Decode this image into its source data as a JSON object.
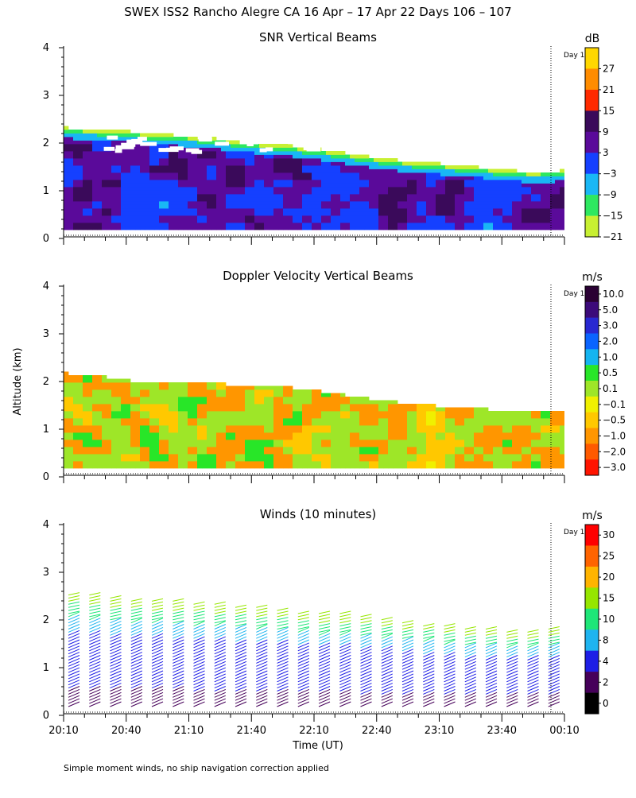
{
  "page": {
    "title": "SWEX ISS2 Rancho Alegre CA  16 Apr – 17 Apr 22 Days 106 – 107",
    "y_axis_label": "Altitude (km)",
    "x_axis_label": "Time (UT)",
    "footnote": "Simple moment winds, no ship navigation correction applied",
    "day_marker_label": "Day 1"
  },
  "time_ticks": [
    "20:10",
    "20:40",
    "21:10",
    "21:40",
    "22:10",
    "22:40",
    "23:10",
    "23:40",
    "00:10"
  ],
  "altitude_ticks": [
    "0",
    "1",
    "2",
    "3",
    "4"
  ],
  "chart_data": [
    {
      "type": "heatmap",
      "title": "SNR Vertical Beams",
      "colorbar_unit": "dB",
      "colorbar_labels": [
        "27",
        "21",
        "15",
        "9",
        "3",
        "−3",
        "−9",
        "−15",
        "−21"
      ],
      "colorbar_colors": [
        "#ffd700",
        "#ff8c00",
        "#ff2a00",
        "#3a0a5a",
        "#5a0a9a",
        "#1540ff",
        "#19b7f5",
        "#2ee860",
        "#c8f032"
      ],
      "ylim": [
        0,
        4
      ],
      "xlim": [
        "20:10",
        "00:10"
      ],
      "grid": false,
      "echo_top_km": [
        2.25,
        2.22,
        2.18,
        2.12,
        2.08,
        2.02,
        1.95,
        1.9,
        1.82,
        1.72,
        1.62,
        1.55,
        1.5,
        1.45,
        1.38,
        1.33,
        1.35
      ]
    },
    {
      "type": "heatmap",
      "title": "Doppler Velocity Vertical Beams",
      "colorbar_unit": "m/s",
      "colorbar_labels": [
        "10.0",
        "5.0",
        "3.0",
        "2.0",
        "1.0",
        "0.5",
        "0.1",
        "−0.1",
        "−0.5",
        "−1.0",
        "−2.0",
        "−3.0"
      ],
      "colorbar_colors": [
        "#2a0033",
        "#3c0a7a",
        "#2828d2",
        "#0a64ff",
        "#14b4f0",
        "#28e628",
        "#9ee628",
        "#f0f000",
        "#ffc800",
        "#ff9600",
        "#ff5a00",
        "#ff1400"
      ],
      "ylim": [
        0,
        4
      ],
      "xlim": [
        "20:10",
        "00:10"
      ],
      "grid": false,
      "echo_top_km": [
        2.1,
        2.05,
        1.95,
        1.92,
        1.9,
        1.88,
        1.85,
        1.82,
        1.75,
        1.65,
        1.55,
        1.48,
        1.42,
        1.38,
        1.33,
        1.3,
        1.32
      ]
    },
    {
      "type": "scatter",
      "title": "Winds (10 minutes)",
      "colorbar_unit": "m/s",
      "colorbar_labels": [
        "30",
        "25",
        "20",
        "15",
        "10",
        "8",
        "4",
        "2",
        "0"
      ],
      "colorbar_colors": [
        "#ff0000",
        "#ff6400",
        "#ffb400",
        "#96e600",
        "#1ee678",
        "#1eb4f0",
        "#1e1ee6",
        "#46005a",
        "#000000"
      ],
      "ylim": [
        0,
        4
      ],
      "xlim": [
        "20:10",
        "00:10"
      ],
      "grid": false,
      "profile_times": [
        "20:10",
        "20:20",
        "20:30",
        "20:40",
        "20:50",
        "21:00",
        "21:10",
        "21:20",
        "21:30",
        "21:40",
        "21:50",
        "22:00",
        "22:10",
        "22:20",
        "22:30",
        "22:40",
        "22:50",
        "23:00",
        "23:10",
        "23:20",
        "23:30",
        "23:40",
        "23:50",
        "00:00"
      ],
      "profile_top_km": [
        2.55,
        2.5,
        2.45,
        2.42,
        2.4,
        2.38,
        2.35,
        2.3,
        2.28,
        2.25,
        2.2,
        2.15,
        2.1,
        2.1,
        2.05,
        2.0,
        1.95,
        1.9,
        1.85,
        1.8,
        1.8,
        1.75,
        1.75,
        1.8
      ]
    }
  ]
}
